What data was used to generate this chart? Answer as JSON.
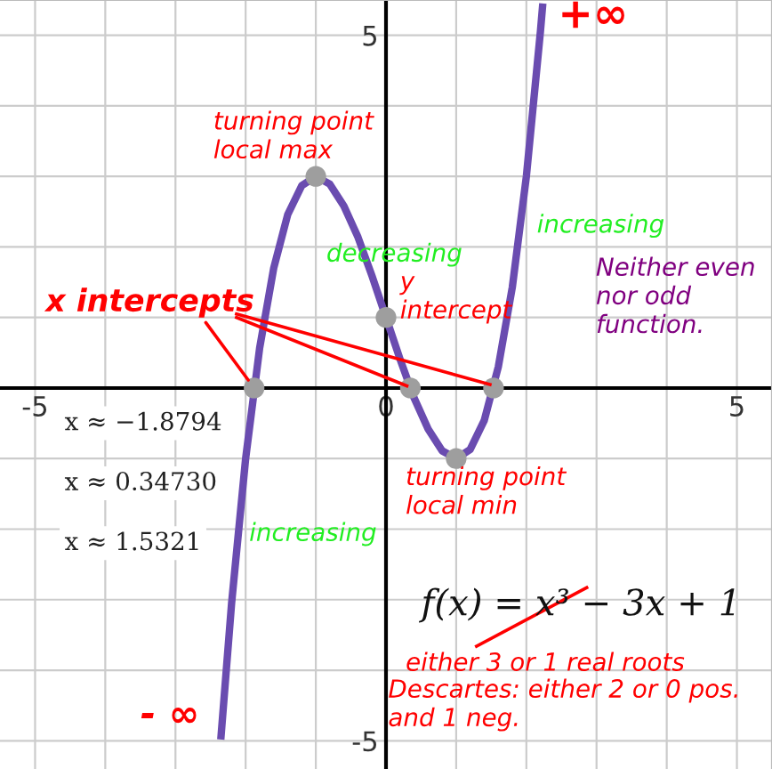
{
  "chart_data": {
    "type": "line",
    "x": [
      -2.35,
      -2.2,
      -2.0,
      -1.8,
      -1.6,
      -1.4,
      -1.2,
      -1.0,
      -0.8,
      -0.6,
      -0.4,
      -0.2,
      0,
      0.2,
      0.4,
      0.6,
      0.8,
      1.0,
      1.2,
      1.4,
      1.6,
      1.8,
      2.0,
      2.2,
      2.23
    ],
    "series": [
      {
        "color": "#6a4cb0",
        "marker": "none",
        "values": [
          -4.93,
          -3.05,
          -1,
          0.57,
          1.7,
          2.46,
          2.87,
          3,
          2.89,
          2.58,
          2.14,
          1.59,
          1,
          0.41,
          -0.14,
          -0.58,
          -0.89,
          -1,
          -0.87,
          -0.46,
          0.3,
          1.43,
          3,
          5.05,
          5.4
        ]
      },
      {
        "type": "scatter",
        "marker": "circle",
        "color": "#9e9e9e",
        "x": [
          -1.8794,
          0.3473,
          1.5321,
          0,
          -1,
          1
        ],
        "values": [
          0,
          0,
          0,
          1,
          3,
          -1
        ]
      }
    ],
    "xlim": [
      -5.5,
      5.5
    ],
    "ylim": [
      -5.4,
      5.5
    ],
    "xticks": [
      -5,
      {
        "value": -4,
        "label": null
      },
      {
        "value": -3,
        "label": null
      },
      {
        "value": -2,
        "label": null
      },
      {
        "value": -1,
        "label": null
      },
      0,
      {
        "value": 1,
        "label": null
      },
      {
        "value": 2,
        "label": null
      },
      {
        "value": 3,
        "label": null
      },
      {
        "value": 4,
        "label": null
      },
      5
    ],
    "yticks": [
      -5,
      {
        "value": -4,
        "label": null
      },
      {
        "value": -3,
        "label": null
      },
      {
        "value": -2,
        "label": null
      },
      {
        "value": -1,
        "label": null
      },
      {
        "value": 0,
        "label": null
      },
      {
        "value": 1,
        "label": null
      },
      {
        "value": 2,
        "label": null
      },
      {
        "value": 3,
        "label": null
      },
      {
        "value": 4,
        "label": null
      },
      5
    ],
    "grid": true,
    "line_style": "solid",
    "annotations": [
      "+∞",
      "turning point\nlocal max",
      "decreasing",
      "y\nintercept",
      "increasing",
      "Neither even\nnor odd\nfunction.",
      {
        "text": "x intercepts",
        "x": -1.8794,
        "y": 0
      },
      "x ≈ −1.8794",
      "x ≈ 0.34730",
      "x ≈ 1.5321",
      "turning point\nlocal min",
      "increasing",
      "f(x) = x³ − 3x + 1",
      "either 3 or 1 real roots",
      "Descartes: either 2 or 0 pos.\nand 1 neg.",
      "- ∞"
    ]
  }
}
